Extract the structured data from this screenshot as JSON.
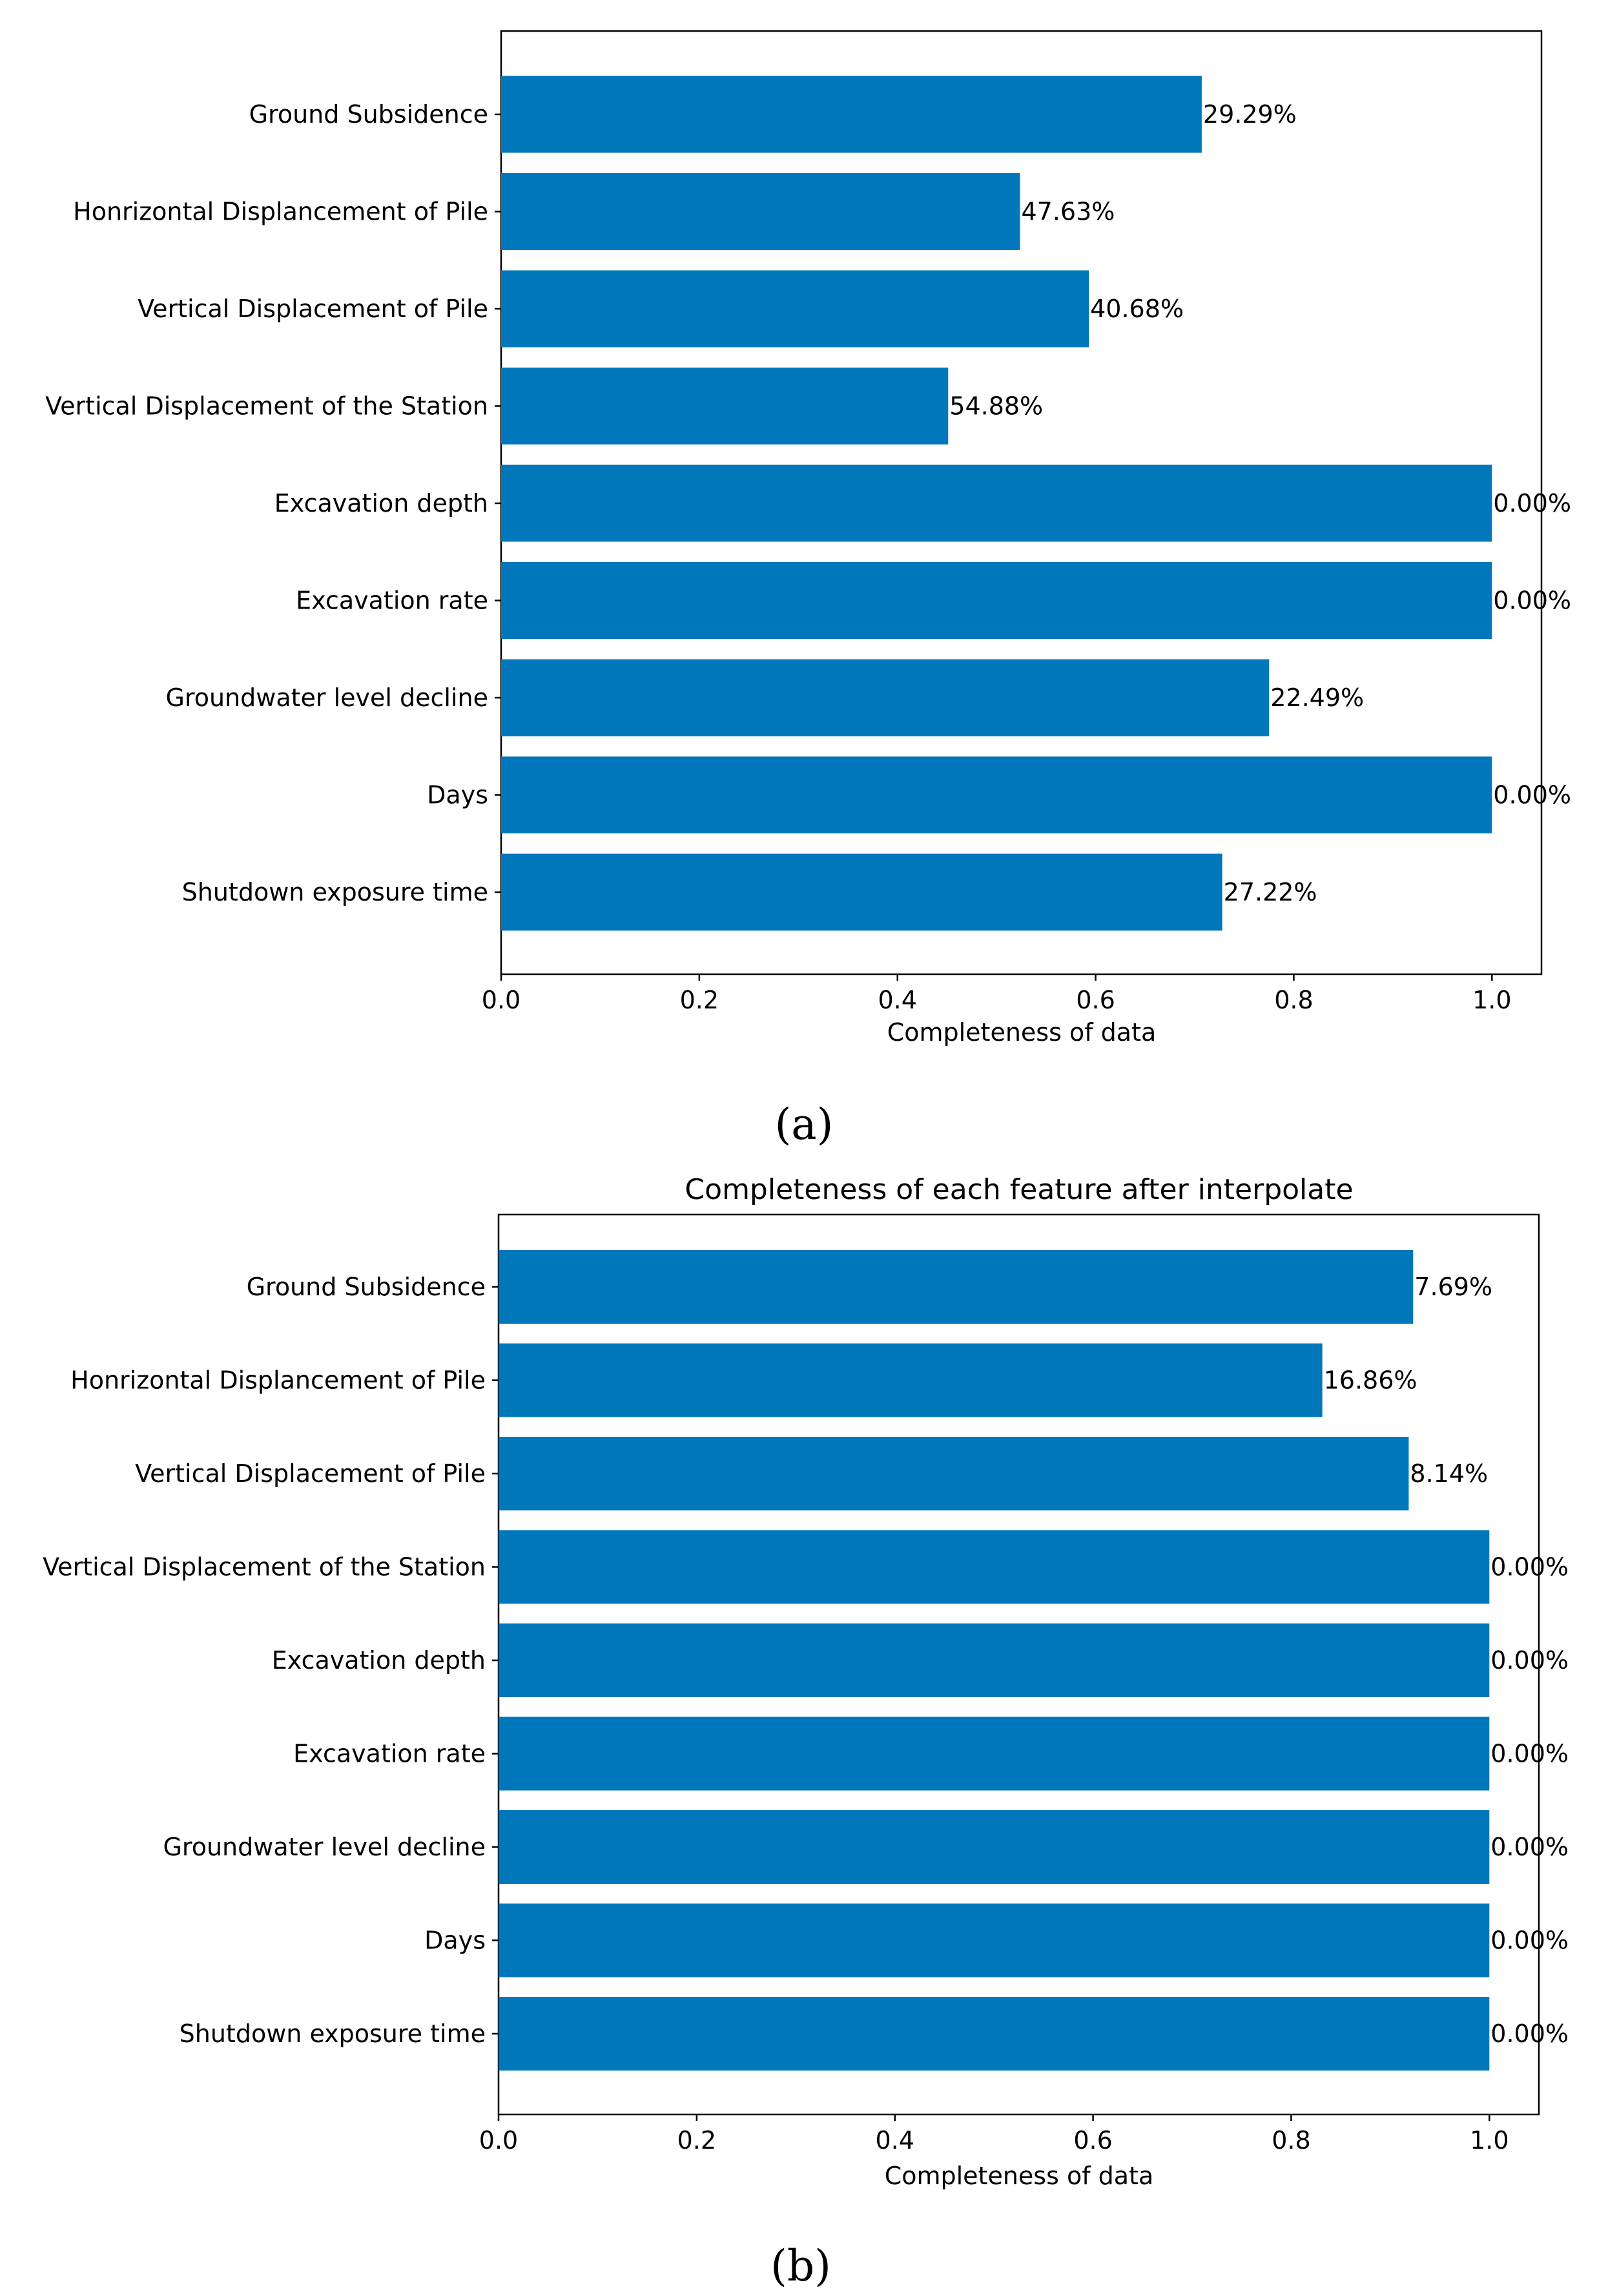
{
  "chart_data": [
    {
      "type": "bar",
      "orientation": "horizontal",
      "panel_label": "(a)",
      "title": "",
      "xlabel": "Completeness of data",
      "ylabel": "",
      "xlim": [
        0,
        1.05
      ],
      "xticks": [
        0.0,
        0.2,
        0.4,
        0.6,
        0.8,
        1.0
      ],
      "xtick_labels": [
        "0.0",
        "0.2",
        "0.4",
        "0.6",
        "0.8",
        "1.0"
      ],
      "grid": false,
      "bar_color": "#0077bb",
      "categories": [
        "Ground Subsidence",
        "Honrizontal Displancement of Pile",
        "Vertical Displacement of Pile",
        "Vertical Displacement of the Station",
        "Excavation depth",
        "Excavation rate",
        "Groundwater level decline",
        "Days",
        "Shutdown exposure time"
      ],
      "values": [
        0.7071,
        0.5237,
        0.5932,
        0.4512,
        1.0,
        1.0,
        0.7751,
        1.0,
        0.7278
      ],
      "data_labels": [
        "29.29%",
        "47.63%",
        "40.68%",
        "54.88%",
        "0.00%",
        "0.00%",
        "22.49%",
        "0.00%",
        "27.22%"
      ]
    },
    {
      "type": "bar",
      "orientation": "horizontal",
      "panel_label": "(b)",
      "title": "Completeness of each feature after interpolate",
      "xlabel": "Completeness of data",
      "ylabel": "",
      "xlim": [
        0,
        1.05
      ],
      "xticks": [
        0.0,
        0.2,
        0.4,
        0.6,
        0.8,
        1.0
      ],
      "xtick_labels": [
        "0.0",
        "0.2",
        "0.4",
        "0.6",
        "0.8",
        "1.0"
      ],
      "grid": false,
      "bar_color": "#0077bb",
      "categories": [
        "Ground Subsidence",
        "Honrizontal Displancement of Pile",
        "Vertical Displacement of Pile",
        "Vertical Displacement of the Station",
        "Excavation depth",
        "Excavation rate",
        "Groundwater level decline",
        "Days",
        "Shutdown exposure time"
      ],
      "values": [
        0.9231,
        0.8314,
        0.9186,
        1.0,
        1.0,
        1.0,
        1.0,
        1.0,
        1.0
      ],
      "data_labels": [
        "7.69%",
        "16.86%",
        "8.14%",
        "0.00%",
        "0.00%",
        "0.00%",
        "0.00%",
        "0.00%",
        "0.00%"
      ]
    }
  ]
}
